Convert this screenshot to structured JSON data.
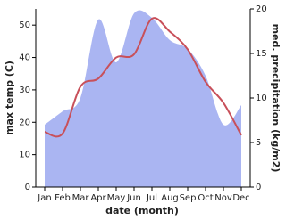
{
  "chart_data": {
    "type": "line-area",
    "x_label": "date (month)",
    "y_label": "max temp (C)",
    "y2_label": "med. precipitation (kg/m2)",
    "categories": [
      "Jan",
      "Feb",
      "Mar",
      "Apr",
      "May",
      "Jun",
      "Jul",
      "Aug",
      "Sep",
      "Oct",
      "Nov",
      "Dec"
    ],
    "series": [
      {
        "name": "max temp",
        "color": "#c8505a",
        "type": "line",
        "values": [
          17,
          16.5,
          31,
          33.5,
          40,
          41,
          52,
          48,
          42.5,
          32.5,
          26,
          16
        ]
      },
      {
        "name": "precipitation",
        "color": "#aab5f2",
        "type": "area",
        "axis": "y2",
        "values": [
          7,
          8.5,
          10,
          18.8,
          14,
          19.5,
          19,
          16.5,
          15.5,
          12.5,
          7,
          9.2
        ]
      }
    ],
    "ylim": [
      0,
      55
    ],
    "yticks": [
      0,
      10,
      20,
      30,
      40,
      50
    ],
    "y2lim": [
      0,
      20
    ],
    "y2ticks": [
      0,
      5,
      10,
      15,
      20
    ]
  }
}
